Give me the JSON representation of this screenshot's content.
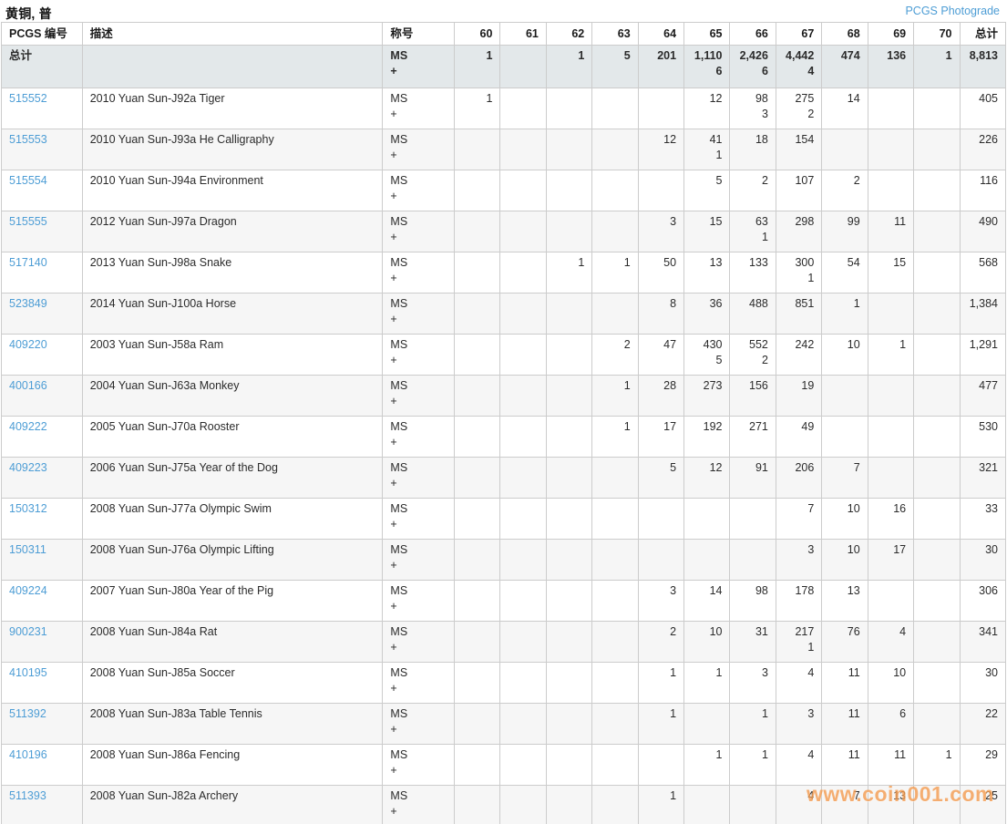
{
  "page": {
    "title": "黄铜, 普",
    "photograde_link": "PCGS Photograde"
  },
  "colors": {
    "link_blue": "#4d9dd5",
    "totals_bg": "#e3e8ea",
    "alt_row_bg": "#f6f6f6",
    "border": "#cccccc",
    "watermark_orange": "#f49c50"
  },
  "watermark": "www.coin001.com",
  "table": {
    "headers": {
      "pcgs_no": "PCGS 编号",
      "description": "描述",
      "designation": "称号",
      "grades": [
        "60",
        "61",
        "62",
        "63",
        "64",
        "65",
        "66",
        "67",
        "68",
        "69",
        "70"
      ],
      "total": "总计"
    },
    "designation_ms": "MS",
    "designation_plus": "+",
    "totals_row": {
      "label": "总计",
      "grades": [
        [
          "1",
          ""
        ],
        [
          "",
          ""
        ],
        [
          "1",
          ""
        ],
        [
          "5",
          ""
        ],
        [
          "201",
          ""
        ],
        [
          "1,110",
          "6"
        ],
        [
          "2,426",
          "6"
        ],
        [
          "4,442",
          "4"
        ],
        [
          "474",
          ""
        ],
        [
          "136",
          ""
        ],
        [
          "1",
          ""
        ]
      ],
      "total": "8,813"
    },
    "rows": [
      {
        "pcgs_no": "515552",
        "description": "2010 Yuan Sun-J92a Tiger",
        "grades": [
          [
            "1",
            ""
          ],
          [
            "",
            ""
          ],
          [
            "",
            ""
          ],
          [
            "",
            ""
          ],
          [
            "",
            ""
          ],
          [
            "12",
            ""
          ],
          [
            "98",
            "3"
          ],
          [
            "275",
            "2"
          ],
          [
            "14",
            ""
          ],
          [
            "",
            ""
          ],
          [
            "",
            ""
          ]
        ],
        "total": "405"
      },
      {
        "pcgs_no": "515553",
        "description": "2010 Yuan Sun-J93a He Calligraphy",
        "grades": [
          [
            "",
            ""
          ],
          [
            "",
            ""
          ],
          [
            "",
            ""
          ],
          [
            "",
            ""
          ],
          [
            "12",
            ""
          ],
          [
            "41",
            "1"
          ],
          [
            "18",
            ""
          ],
          [
            "154",
            ""
          ],
          [
            "",
            ""
          ],
          [
            "",
            ""
          ],
          [
            "",
            ""
          ]
        ],
        "total": "226"
      },
      {
        "pcgs_no": "515554",
        "description": "2010 Yuan Sun-J94a Environment",
        "grades": [
          [
            "",
            ""
          ],
          [
            "",
            ""
          ],
          [
            "",
            ""
          ],
          [
            "",
            ""
          ],
          [
            "",
            ""
          ],
          [
            "5",
            ""
          ],
          [
            "2",
            ""
          ],
          [
            "107",
            ""
          ],
          [
            "2",
            ""
          ],
          [
            "",
            ""
          ],
          [
            "",
            ""
          ]
        ],
        "total": "116"
      },
      {
        "pcgs_no": "515555",
        "description": "2012 Yuan Sun-J97a Dragon",
        "grades": [
          [
            "",
            ""
          ],
          [
            "",
            ""
          ],
          [
            "",
            ""
          ],
          [
            "",
            ""
          ],
          [
            "3",
            ""
          ],
          [
            "15",
            ""
          ],
          [
            "63",
            "1"
          ],
          [
            "298",
            ""
          ],
          [
            "99",
            ""
          ],
          [
            "11",
            ""
          ],
          [
            "",
            ""
          ]
        ],
        "total": "490"
      },
      {
        "pcgs_no": "517140",
        "description": "2013 Yuan Sun-J98a Snake",
        "grades": [
          [
            "",
            ""
          ],
          [
            "",
            ""
          ],
          [
            "1",
            ""
          ],
          [
            "1",
            ""
          ],
          [
            "50",
            ""
          ],
          [
            "13",
            ""
          ],
          [
            "133",
            ""
          ],
          [
            "300",
            "1"
          ],
          [
            "54",
            ""
          ],
          [
            "15",
            ""
          ],
          [
            "",
            ""
          ]
        ],
        "total": "568"
      },
      {
        "pcgs_no": "523849",
        "description": "2014 Yuan Sun-J100a Horse",
        "grades": [
          [
            "",
            ""
          ],
          [
            "",
            ""
          ],
          [
            "",
            ""
          ],
          [
            "",
            ""
          ],
          [
            "8",
            ""
          ],
          [
            "36",
            ""
          ],
          [
            "488",
            ""
          ],
          [
            "851",
            ""
          ],
          [
            "1",
            ""
          ],
          [
            "",
            ""
          ],
          [
            "",
            ""
          ]
        ],
        "total": "1,384"
      },
      {
        "pcgs_no": "409220",
        "description": "2003 Yuan Sun-J58a Ram",
        "grades": [
          [
            "",
            ""
          ],
          [
            "",
            ""
          ],
          [
            "",
            ""
          ],
          [
            "2",
            ""
          ],
          [
            "47",
            ""
          ],
          [
            "430",
            "5"
          ],
          [
            "552",
            "2"
          ],
          [
            "242",
            ""
          ],
          [
            "10",
            ""
          ],
          [
            "1",
            ""
          ],
          [
            "",
            ""
          ]
        ],
        "total": "1,291"
      },
      {
        "pcgs_no": "400166",
        "description": "2004 Yuan Sun-J63a Monkey",
        "grades": [
          [
            "",
            ""
          ],
          [
            "",
            ""
          ],
          [
            "",
            ""
          ],
          [
            "1",
            ""
          ],
          [
            "28",
            ""
          ],
          [
            "273",
            ""
          ],
          [
            "156",
            ""
          ],
          [
            "19",
            ""
          ],
          [
            "",
            ""
          ],
          [
            "",
            ""
          ],
          [
            "",
            ""
          ]
        ],
        "total": "477"
      },
      {
        "pcgs_no": "409222",
        "description": "2005 Yuan Sun-J70a Rooster",
        "grades": [
          [
            "",
            ""
          ],
          [
            "",
            ""
          ],
          [
            "",
            ""
          ],
          [
            "1",
            ""
          ],
          [
            "17",
            ""
          ],
          [
            "192",
            ""
          ],
          [
            "271",
            ""
          ],
          [
            "49",
            ""
          ],
          [
            "",
            ""
          ],
          [
            "",
            ""
          ],
          [
            "",
            ""
          ]
        ],
        "total": "530"
      },
      {
        "pcgs_no": "409223",
        "description": "2006 Yuan Sun-J75a Year of the Dog",
        "grades": [
          [
            "",
            ""
          ],
          [
            "",
            ""
          ],
          [
            "",
            ""
          ],
          [
            "",
            ""
          ],
          [
            "5",
            ""
          ],
          [
            "12",
            ""
          ],
          [
            "91",
            ""
          ],
          [
            "206",
            ""
          ],
          [
            "7",
            ""
          ],
          [
            "",
            ""
          ],
          [
            "",
            ""
          ]
        ],
        "total": "321"
      },
      {
        "pcgs_no": "150312",
        "description": "2008 Yuan Sun-J77a Olympic Swim",
        "grades": [
          [
            "",
            ""
          ],
          [
            "",
            ""
          ],
          [
            "",
            ""
          ],
          [
            "",
            ""
          ],
          [
            "",
            ""
          ],
          [
            "",
            ""
          ],
          [
            "",
            ""
          ],
          [
            "7",
            ""
          ],
          [
            "10",
            ""
          ],
          [
            "16",
            ""
          ],
          [
            "",
            ""
          ]
        ],
        "total": "33"
      },
      {
        "pcgs_no": "150311",
        "description": "2008 Yuan Sun-J76a Olympic Lifting",
        "grades": [
          [
            "",
            ""
          ],
          [
            "",
            ""
          ],
          [
            "",
            ""
          ],
          [
            "",
            ""
          ],
          [
            "",
            ""
          ],
          [
            "",
            ""
          ],
          [
            "",
            ""
          ],
          [
            "3",
            ""
          ],
          [
            "10",
            ""
          ],
          [
            "17",
            ""
          ],
          [
            "",
            ""
          ]
        ],
        "total": "30"
      },
      {
        "pcgs_no": "409224",
        "description": "2007 Yuan Sun-J80a Year of the Pig",
        "grades": [
          [
            "",
            ""
          ],
          [
            "",
            ""
          ],
          [
            "",
            ""
          ],
          [
            "",
            ""
          ],
          [
            "3",
            ""
          ],
          [
            "14",
            ""
          ],
          [
            "98",
            ""
          ],
          [
            "178",
            ""
          ],
          [
            "13",
            ""
          ],
          [
            "",
            ""
          ],
          [
            "",
            ""
          ]
        ],
        "total": "306"
      },
      {
        "pcgs_no": "900231",
        "description": "2008 Yuan Sun-J84a Rat",
        "grades": [
          [
            "",
            ""
          ],
          [
            "",
            ""
          ],
          [
            "",
            ""
          ],
          [
            "",
            ""
          ],
          [
            "2",
            ""
          ],
          [
            "10",
            ""
          ],
          [
            "31",
            ""
          ],
          [
            "217",
            "1"
          ],
          [
            "76",
            ""
          ],
          [
            "4",
            ""
          ],
          [
            "",
            ""
          ]
        ],
        "total": "341"
      },
      {
        "pcgs_no": "410195",
        "description": "2008 Yuan Sun-J85a Soccer",
        "grades": [
          [
            "",
            ""
          ],
          [
            "",
            ""
          ],
          [
            "",
            ""
          ],
          [
            "",
            ""
          ],
          [
            "1",
            ""
          ],
          [
            "1",
            ""
          ],
          [
            "3",
            ""
          ],
          [
            "4",
            ""
          ],
          [
            "11",
            ""
          ],
          [
            "10",
            ""
          ],
          [
            "",
            ""
          ]
        ],
        "total": "30"
      },
      {
        "pcgs_no": "511392",
        "description": "2008 Yuan Sun-J83a Table Tennis",
        "grades": [
          [
            "",
            ""
          ],
          [
            "",
            ""
          ],
          [
            "",
            ""
          ],
          [
            "",
            ""
          ],
          [
            "1",
            ""
          ],
          [
            "",
            ""
          ],
          [
            "1",
            ""
          ],
          [
            "3",
            ""
          ],
          [
            "11",
            ""
          ],
          [
            "6",
            ""
          ],
          [
            "",
            ""
          ]
        ],
        "total": "22"
      },
      {
        "pcgs_no": "410196",
        "description": "2008 Yuan Sun-J86a Fencing",
        "grades": [
          [
            "",
            ""
          ],
          [
            "",
            ""
          ],
          [
            "",
            ""
          ],
          [
            "",
            ""
          ],
          [
            "",
            ""
          ],
          [
            "1",
            ""
          ],
          [
            "1",
            ""
          ],
          [
            "4",
            ""
          ],
          [
            "11",
            ""
          ],
          [
            "11",
            ""
          ],
          [
            "1",
            ""
          ]
        ],
        "total": "29"
      },
      {
        "pcgs_no": "511393",
        "description": "2008 Yuan Sun-J82a Archery",
        "grades": [
          [
            "",
            ""
          ],
          [
            "",
            ""
          ],
          [
            "",
            ""
          ],
          [
            "",
            ""
          ],
          [
            "1",
            ""
          ],
          [
            "",
            ""
          ],
          [
            "",
            ""
          ],
          [
            "4",
            ""
          ],
          [
            "7",
            ""
          ],
          [
            "13",
            ""
          ],
          [
            "",
            ""
          ]
        ],
        "total": "25"
      }
    ]
  }
}
